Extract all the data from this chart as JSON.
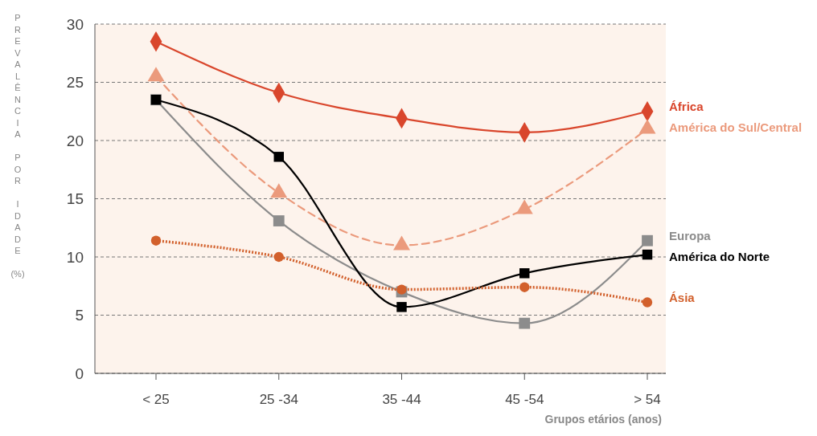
{
  "chart_data": {
    "type": "line",
    "ylabel": "PREVALÊNCIA POR IDADE (%)",
    "xlabel": "Grupos etários (anos)",
    "categories": [
      "< 25",
      "25 -34",
      "35 -44",
      "45 -54",
      "> 54"
    ],
    "series": [
      {
        "name": "África",
        "color": "#d9462c",
        "marker": "diamond",
        "line_style": "solid",
        "values": [
          28.5,
          24.1,
          21.9,
          20.7,
          22.5
        ]
      },
      {
        "name": "América do Sul/Central",
        "color": "#eb9a7c",
        "marker": "triangle",
        "line_style": "dashed",
        "values": [
          25.5,
          15.5,
          11.0,
          14.1,
          21.0
        ]
      },
      {
        "name": "Europa",
        "color": "#8c8c8c",
        "marker": "square",
        "line_style": "solid",
        "values": [
          23.5,
          13.1,
          7.0,
          4.3,
          11.4
        ]
      },
      {
        "name": "América do Norte",
        "color": "#000000",
        "marker": "square",
        "line_style": "solid",
        "values": [
          23.5,
          18.6,
          5.7,
          8.6,
          10.2
        ]
      },
      {
        "name": "Ásia",
        "color": "#d2602c",
        "marker": "circle",
        "line_style": "dotted",
        "values": [
          11.4,
          10.0,
          7.2,
          7.4,
          6.1
        ]
      }
    ],
    "ylim": [
      0,
      30
    ],
    "yticks": [
      0,
      5,
      10,
      15,
      20,
      25,
      30
    ],
    "grid": "y",
    "legend": "right"
  }
}
